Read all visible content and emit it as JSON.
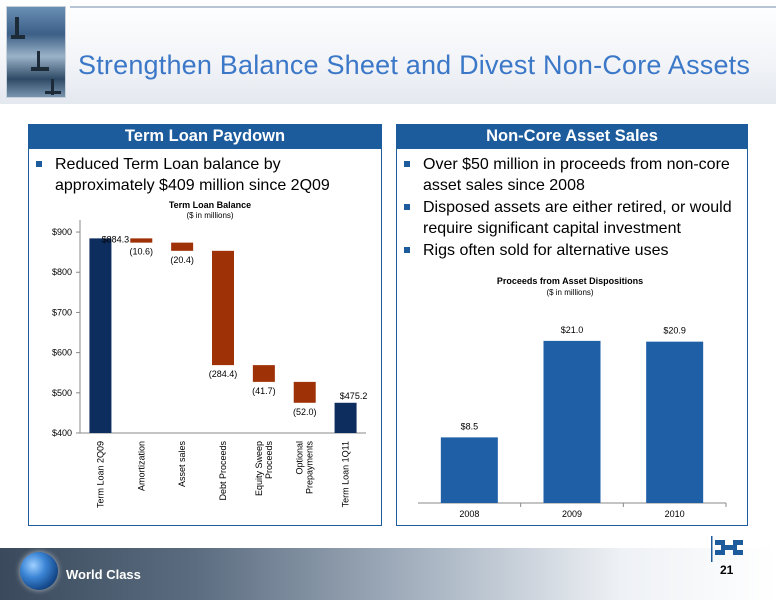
{
  "slide": {
    "title": "Strengthen Balance Sheet and Divest Non-Core Assets",
    "page_number": "21",
    "footer_text": "World Class"
  },
  "left_panel": {
    "heading": "Term Loan Paydown",
    "bullets": [
      "Reduced Term Loan balance by approximately $409 million since 2Q09"
    ]
  },
  "right_panel": {
    "heading": "Non-Core Asset Sales",
    "bullets": [
      "Over $50 million in proceeds from non-core asset sales since 2008",
      "Disposed assets are either retired, or would require significant capital investment",
      "Rigs often sold for alternative uses"
    ]
  },
  "colors": {
    "accent_blue": "#1d5c9c",
    "title_blue": "#3c78c8",
    "bar_navy": "#0d2d5e",
    "bar_rust": "#9e3206",
    "bar_blue": "#1e5fa6"
  },
  "chart_data": [
    {
      "type": "bar",
      "subtype": "waterfall",
      "title": "Term Loan Balance",
      "subtitle": "($ in millions)",
      "categories": [
        "Term Loan 2Q09",
        "Amortization",
        "Asset sales",
        "Debt Proceeds",
        "Equity Sweep Proceeds",
        "Optional Prepayments",
        "Term Loan 1Q11"
      ],
      "values": [
        884.3,
        -10.6,
        -20.4,
        -284.4,
        -41.7,
        -52.0,
        475.2
      ],
      "data_labels": [
        "$884.3",
        "(10.6)",
        "(20.4)",
        "(284.4)",
        "(41.7)",
        "(52.0)",
        "$475.2"
      ],
      "y_ticks": [
        "$400",
        "$500",
        "$600",
        "$700",
        "$800",
        "$900"
      ],
      "ylim": [
        400,
        930
      ]
    },
    {
      "type": "bar",
      "title": "Proceeds from Asset Dispositions",
      "subtitle": "($ in millions)",
      "categories": [
        "2008",
        "2009",
        "2010"
      ],
      "values": [
        8.5,
        21.0,
        20.9
      ],
      "data_labels": [
        "$8.5",
        "$21.0",
        "$20.9"
      ],
      "ylim": [
        0,
        25
      ]
    }
  ]
}
